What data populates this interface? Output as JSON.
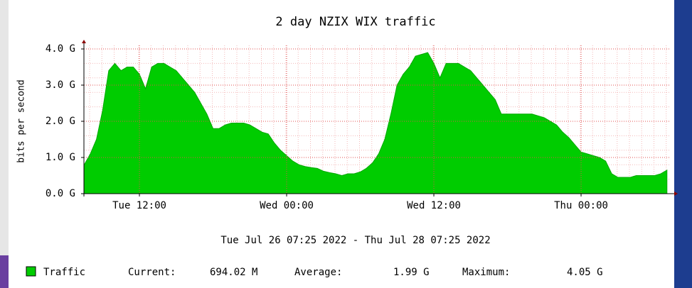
{
  "chart_data": {
    "type": "area",
    "title": "2 day NZIX WIX traffic",
    "subtitle": "Tue Jul 26 07:25 2022 - Thu Jul 28 07:25 2022",
    "y_label": "bits per second",
    "ylim": [
      0,
      4
    ],
    "yticks": [
      {
        "value": 0,
        "label": "0.0 G"
      },
      {
        "value": 1,
        "label": "1.0 G"
      },
      {
        "value": 2,
        "label": "2.0 G"
      },
      {
        "value": 3,
        "label": "3.0 G"
      },
      {
        "value": 4,
        "label": "4.0 G"
      }
    ],
    "grid": true,
    "categories": [
      null,
      null,
      null,
      null,
      null,
      null,
      null,
      null,
      null,
      "Tue 12:00",
      null,
      null,
      null,
      null,
      null,
      null,
      null,
      null,
      null,
      null,
      null,
      null,
      null,
      null,
      null,
      null,
      null,
      null,
      null,
      null,
      null,
      null,
      null,
      "Wed 00:00",
      null,
      null,
      null,
      null,
      null,
      null,
      null,
      null,
      null,
      null,
      null,
      null,
      null,
      null,
      null,
      null,
      null,
      null,
      null,
      null,
      null,
      null,
      null,
      "Wed 12:00",
      null,
      null,
      null,
      null,
      null,
      null,
      null,
      null,
      null,
      null,
      null,
      null,
      null,
      null,
      null,
      null,
      null,
      null,
      null,
      null,
      null,
      null,
      null,
      "Thu 00:00",
      null,
      null,
      null,
      null,
      null,
      null,
      null,
      null,
      null,
      null,
      null,
      null,
      null,
      null
    ],
    "series": [
      {
        "name": "Traffic",
        "color": "#00cc00",
        "values": [
          0.8,
          1.1,
          1.5,
          2.3,
          3.4,
          3.6,
          3.4,
          3.5,
          3.5,
          3.3,
          2.9,
          3.5,
          3.6,
          3.6,
          3.5,
          3.4,
          3.2,
          3.0,
          2.8,
          2.5,
          2.2,
          1.8,
          1.8,
          1.9,
          1.95,
          1.95,
          1.95,
          1.9,
          1.8,
          1.7,
          1.65,
          1.4,
          1.2,
          1.05,
          0.9,
          0.8,
          0.75,
          0.72,
          0.7,
          0.62,
          0.58,
          0.55,
          0.5,
          0.55,
          0.55,
          0.6,
          0.7,
          0.85,
          1.1,
          1.5,
          2.2,
          3.0,
          3.3,
          3.5,
          3.8,
          3.85,
          3.9,
          3.6,
          3.2,
          3.6,
          3.6,
          3.6,
          3.5,
          3.4,
          3.2,
          3.0,
          2.8,
          2.6,
          2.2,
          2.2,
          2.2,
          2.2,
          2.2,
          2.2,
          2.15,
          2.1,
          2.0,
          1.9,
          1.7,
          1.55,
          1.35,
          1.15,
          1.1,
          1.05,
          1.0,
          0.9,
          0.55,
          0.45,
          0.45,
          0.45,
          0.5,
          0.5,
          0.5,
          0.5,
          0.55,
          0.65
        ]
      }
    ],
    "legend": {
      "current_label": "Current:",
      "current": "694.02 M",
      "average_label": "Average:",
      "average": "1.99 G",
      "maximum_label": "Maximum:",
      "maximum": "4.05 G"
    }
  }
}
